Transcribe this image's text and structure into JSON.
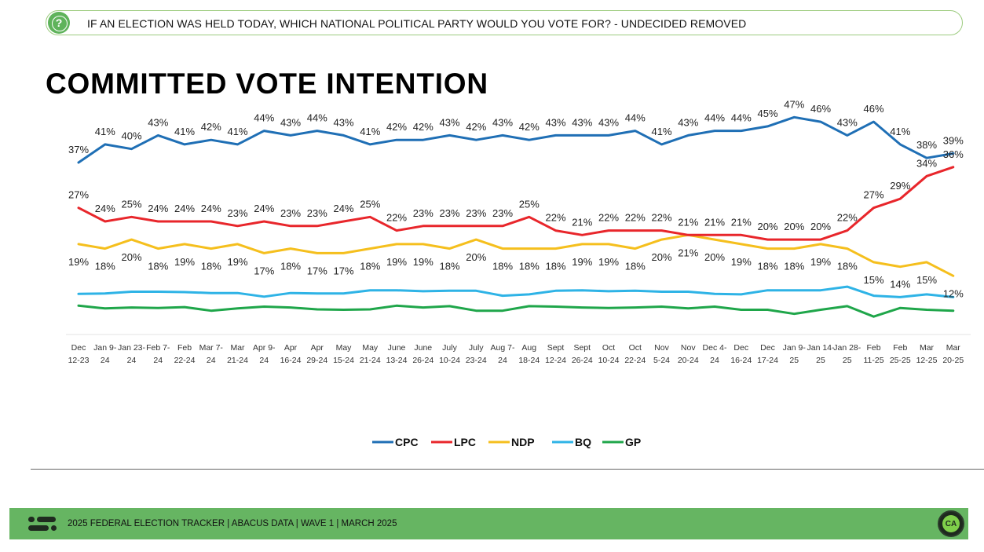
{
  "question": "IF AN ELECTION WAS HELD TODAY, WHICH NATIONAL POLITICAL PARTY WOULD YOU VOTE FOR? - UNDECIDED REMOVED",
  "question_icon": "?",
  "title": "COMMITTED VOTE INTENTION",
  "footer": {
    "text": "2025 FEDERAL ELECTION TRACKER  |  ABACUS DATA  |  WAVE 1  |  MARCH 2025",
    "badge": "CA"
  },
  "chart_data": {
    "type": "line",
    "categories": [
      [
        "Dec",
        "12-23"
      ],
      [
        "Jan 9-",
        "24"
      ],
      [
        "Jan 23-",
        "24"
      ],
      [
        "Feb 7-",
        "24"
      ],
      [
        "Feb",
        "22-24"
      ],
      [
        "Mar 7-",
        "24"
      ],
      [
        "Mar",
        "21-24"
      ],
      [
        "Apr 9-",
        "24"
      ],
      [
        "Apr",
        "16-24"
      ],
      [
        "Apr",
        "29-24"
      ],
      [
        "May",
        "15-24"
      ],
      [
        "May",
        "21-24"
      ],
      [
        "June",
        "13-24"
      ],
      [
        "June",
        "26-24"
      ],
      [
        "July",
        "10-24"
      ],
      [
        "July",
        "23-24"
      ],
      [
        "Aug 7-",
        "24"
      ],
      [
        "Aug",
        "18-24"
      ],
      [
        "Sept",
        "12-24"
      ],
      [
        "Sept",
        "26-24"
      ],
      [
        "Oct",
        "10-24"
      ],
      [
        "Oct",
        "22-24"
      ],
      [
        "Nov",
        "5-24"
      ],
      [
        "Nov",
        "20-24"
      ],
      [
        "Dec 4-",
        "24"
      ],
      [
        "Dec",
        "16-24"
      ],
      [
        "Dec",
        "17-24"
      ],
      [
        "Jan 9-",
        "25"
      ],
      [
        "Jan 14-",
        "25"
      ],
      [
        "Jan 28-",
        "25"
      ],
      [
        "Feb",
        "11-25"
      ],
      [
        "Feb",
        "25-25"
      ],
      [
        "Mar",
        "12-25"
      ],
      [
        "Mar",
        "20-25"
      ]
    ],
    "series": [
      {
        "name": "CPC",
        "color": "#1f6fb5",
        "labeled": true,
        "values": [
          37,
          41,
          40,
          43,
          41,
          42,
          41,
          44,
          43,
          44,
          43,
          41,
          42,
          42,
          43,
          42,
          43,
          42,
          43,
          43,
          43,
          44,
          41,
          43,
          44,
          44,
          45,
          47,
          46,
          43,
          46,
          41,
          38,
          39
        ]
      },
      {
        "name": "LPC",
        "color": "#e8262b",
        "labeled": true,
        "values": [
          27,
          24,
          25,
          24,
          24,
          24,
          23,
          24,
          23,
          23,
          24,
          25,
          22,
          23,
          23,
          23,
          23,
          25,
          22,
          21,
          22,
          22,
          22,
          21,
          21,
          21,
          20,
          20,
          20,
          22,
          27,
          29,
          34,
          36
        ]
      },
      {
        "name": "NDP",
        "color": "#f5bf1d",
        "labeled": true,
        "values": [
          19,
          18,
          20,
          18,
          19,
          18,
          19,
          17,
          18,
          17,
          17,
          18,
          19,
          19,
          18,
          20,
          18,
          18,
          18,
          19,
          19,
          18,
          20,
          21,
          20,
          19,
          18,
          18,
          19,
          18,
          15,
          14,
          15,
          12
        ]
      },
      {
        "name": "BQ",
        "color": "#2eb3e6",
        "labeled": false,
        "values": [
          8.0,
          8.1,
          8.5,
          8.5,
          8.4,
          8.2,
          8.2,
          7.4,
          8.2,
          8.1,
          8.1,
          8.8,
          8.8,
          8.6,
          8.7,
          8.7,
          7.6,
          7.9,
          8.7,
          8.8,
          8.6,
          8.7,
          8.5,
          8.5,
          8.0,
          7.9,
          8.8,
          8.8,
          8.8,
          9.6,
          7.6,
          7.3,
          7.9,
          7.3
        ]
      },
      {
        "name": "GP",
        "color": "#1fa64a",
        "labeled": false,
        "values": [
          5.4,
          4.8,
          5.0,
          4.9,
          5.1,
          4.3,
          4.8,
          5.2,
          5.0,
          4.6,
          4.5,
          4.6,
          5.4,
          5.0,
          5.3,
          4.3,
          4.3,
          5.3,
          5.2,
          5.0,
          4.9,
          5.0,
          5.2,
          4.8,
          5.2,
          4.5,
          4.5,
          3.6,
          4.5,
          5.3,
          3.0,
          4.9,
          4.5,
          4.3
        ]
      }
    ],
    "legend": [
      "CPC",
      "LPC",
      "NDP",
      "BQ",
      "GP"
    ],
    "legend_position": "bottom",
    "grid": false
  }
}
